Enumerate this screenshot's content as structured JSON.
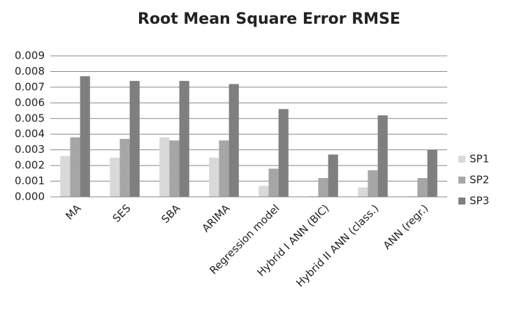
{
  "chart_data": {
    "type": "bar",
    "title": "Root Mean Square Error RMSE",
    "categories": [
      "MA",
      "SES",
      "SBA",
      "ARIMA",
      "Regression model",
      "Hybrid I ANN (BIC)",
      "Hybrid II ANN (class.)",
      "ANN (regr.)"
    ],
    "series": [
      {
        "name": "SP1",
        "color": "#d9d9d9",
        "values": [
          0.0026,
          0.0025,
          0.0038,
          0.0025,
          0.0007,
          5e-05,
          0.0006,
          5e-05
        ]
      },
      {
        "name": "SP2",
        "color": "#a6a6a6",
        "values": [
          0.0038,
          0.0037,
          0.0036,
          0.0036,
          0.0018,
          0.0012,
          0.0017,
          0.0012
        ]
      },
      {
        "name": "SP3",
        "color": "#7f7f7f",
        "values": [
          0.0077,
          0.0074,
          0.0074,
          0.0072,
          0.0056,
          0.0027,
          0.0052,
          0.003
        ]
      }
    ],
    "ylim": [
      0,
      0.009
    ],
    "yticks": [
      {
        "value": 0,
        "label": "0.000"
      },
      0.001,
      0.002,
      0.003,
      0.004,
      0.005,
      0.006,
      0.007,
      0.008,
      0.009
    ],
    "grid": true,
    "legend": "right"
  }
}
